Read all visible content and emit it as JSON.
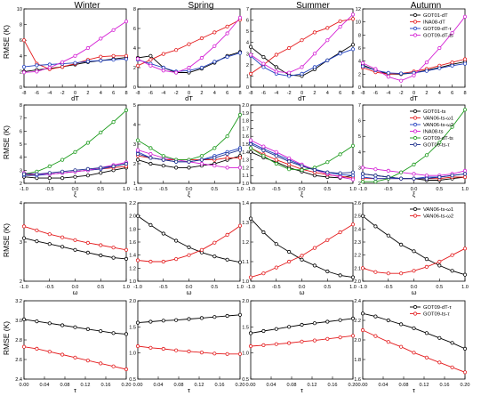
{
  "figure": {
    "seasons": [
      "Winter",
      "Spring",
      "Summer",
      "Autumn"
    ],
    "ylabel": "RMSE (K)"
  },
  "chart_data": [
    {
      "type": "line",
      "row": 0,
      "xlabel": "dT",
      "x": [
        -8,
        -6,
        -4,
        -2,
        0,
        2,
        4,
        6,
        8
      ],
      "xticks": [
        -8,
        -6,
        -4,
        -2,
        0,
        2,
        4,
        6,
        8
      ],
      "ylims": [
        [
          0,
          10
        ],
        [
          0,
          8
        ],
        [
          0,
          7
        ],
        [
          0,
          12
        ]
      ],
      "yticks": [
        [
          0,
          2,
          4,
          6,
          8,
          10
        ],
        [
          0,
          2,
          4,
          6,
          8
        ],
        [
          0,
          1,
          2,
          3,
          4,
          5,
          6,
          7
        ],
        [
          0,
          2,
          4,
          6,
          8,
          10,
          12
        ]
      ],
      "legend": {
        "panel": 3,
        "position": "top-right"
      },
      "series": [
        {
          "name": "GOT01-dT",
          "color": "#000000",
          "values": [
            [
              2.0,
              2.2,
              2.4,
              2.6,
              2.9,
              3.2,
              3.4,
              3.6,
              3.8
            ],
            [
              3.0,
              3.2,
              2.0,
              1.5,
              1.5,
              1.9,
              2.5,
              3.2,
              3.6
            ],
            [
              3.6,
              2.7,
              1.8,
              1.1,
              1.0,
              1.6,
              2.4,
              3.1,
              3.8
            ],
            [
              3.4,
              2.6,
              2.0,
              2.0,
              2.2,
              2.6,
              3.0,
              3.5,
              3.9
            ]
          ]
        },
        {
          "name": "INA08-dT",
          "color": "#e41a1c",
          "values": [
            [
              6.0,
              3.0,
              2.3,
              2.6,
              3.0,
              3.5,
              3.9,
              4.0,
              4.0
            ],
            [
              2.2,
              2.8,
              3.4,
              3.8,
              4.4,
              5.0,
              5.6,
              6.2,
              6.9
            ],
            [
              1.2,
              2.0,
              2.9,
              3.5,
              4.2,
              4.9,
              5.3,
              5.9,
              6.1
            ],
            [
              3.0,
              2.3,
              2.0,
              2.1,
              2.4,
              2.8,
              3.3,
              3.8,
              4.3
            ]
          ]
        },
        {
          "name": "GOT09-dT-τ",
          "color": "#1f3fbf",
          "values": [
            [
              2.6,
              2.8,
              2.9,
              3.0,
              3.1,
              3.3,
              3.4,
              3.5,
              3.6
            ],
            [
              2.8,
              2.4,
              2.0,
              1.6,
              1.7,
              2.0,
              2.6,
              3.1,
              3.5
            ],
            [
              2.8,
              1.8,
              1.2,
              1.0,
              1.2,
              1.8,
              2.4,
              3.0,
              3.4
            ],
            [
              3.2,
              2.6,
              2.2,
              2.1,
              2.2,
              2.5,
              2.9,
              3.3,
              3.6
            ]
          ]
        },
        {
          "name": "GOT09-dT-ts",
          "color": "#d41ed4",
          "values": [
            [
              1.9,
              2.0,
              2.5,
              3.2,
              4.0,
              5.0,
              6.2,
              7.3,
              8.4
            ],
            [
              2.9,
              2.2,
              1.7,
              1.5,
              2.0,
              3.0,
              4.2,
              5.5,
              7.1
            ],
            [
              2.9,
              2.1,
              1.4,
              1.3,
              1.8,
              3.0,
              4.2,
              5.4,
              6.5
            ],
            [
              3.7,
              2.8,
              1.6,
              1.0,
              1.8,
              3.8,
              6.0,
              8.3,
              10.8
            ]
          ]
        }
      ]
    },
    {
      "type": "line",
      "row": 1,
      "xlabel": "ξ",
      "x": [
        -1.0,
        -0.75,
        -0.5,
        -0.25,
        0.0,
        0.25,
        0.5,
        0.75,
        1.0
      ],
      "xticks": [
        -1.0,
        -0.5,
        0.0,
        0.5,
        1.0
      ],
      "ylims": [
        [
          2,
          8
        ],
        [
          1,
          5
        ],
        [
          1,
          2
        ],
        [
          2,
          7
        ]
      ],
      "yticks": [
        [
          2,
          3,
          4,
          5,
          6,
          7,
          8
        ],
        [
          1,
          2,
          3,
          4,
          5
        ],
        [
          1.0,
          1.1,
          1.2,
          1.3,
          1.4,
          1.5,
          1.6,
          1.7,
          1.8,
          1.9,
          2.0
        ],
        [
          2,
          3,
          4,
          5,
          6,
          7
        ]
      ],
      "legend": {
        "panel": 3,
        "position": "top-right"
      },
      "series": [
        {
          "name": "GOT01-ts",
          "color": "#000000",
          "values": [
            [
              2.5,
              2.4,
              2.4,
              2.4,
              2.5,
              2.6,
              2.8,
              3.0,
              3.2
            ],
            [
              2.2,
              2.0,
              1.9,
              1.8,
              1.8,
              1.9,
              2.0,
              2.2,
              2.4
            ],
            [
              1.4,
              1.33,
              1.27,
              1.2,
              1.15,
              1.1,
              1.08,
              1.07,
              1.1
            ],
            [
              2.6,
              2.5,
              2.4,
              2.3,
              2.3,
              2.2,
              2.2,
              2.3,
              2.4
            ]
          ]
        },
        {
          "name": "VAN06-ts-ω1",
          "color": "#e41a1c",
          "values": [
            [
              2.6,
              2.7,
              2.7,
              2.8,
              2.9,
              3.0,
              3.1,
              3.2,
              3.3
            ],
            [
              2.4,
              2.3,
              2.2,
              2.2,
              2.2,
              2.2,
              2.2,
              2.3,
              2.3
            ],
            [
              1.45,
              1.37,
              1.3,
              1.24,
              1.18,
              1.14,
              1.11,
              1.09,
              1.07
            ],
            [
              2.3,
              2.3,
              2.3,
              2.3,
              2.3,
              2.3,
              2.3,
              2.4,
              2.4
            ]
          ]
        },
        {
          "name": "VAN06-ts-ω2",
          "color": "#1f3fbf",
          "values": [
            [
              2.6,
              2.6,
              2.7,
              2.8,
              2.9,
              3.0,
              3.1,
              3.3,
              3.5
            ],
            [
              2.6,
              2.3,
              2.2,
              2.1,
              2.1,
              2.2,
              2.4,
              2.6,
              2.8
            ],
            [
              1.52,
              1.44,
              1.37,
              1.3,
              1.23,
              1.18,
              1.14,
              1.11,
              1.1
            ],
            [
              2.4,
              2.3,
              2.3,
              2.3,
              2.3,
              2.4,
              2.4,
              2.5,
              2.6
            ]
          ]
        },
        {
          "name": "INA08-ts",
          "color": "#d41ed4",
          "values": [
            [
              2.8,
              2.7,
              2.7,
              2.8,
              2.9,
              3.0,
              3.2,
              3.4,
              3.6
            ],
            [
              2.7,
              2.5,
              2.3,
              2.2,
              2.1,
              2.0,
              1.9,
              1.8,
              1.8
            ],
            [
              1.55,
              1.47,
              1.4,
              1.32,
              1.24,
              1.17,
              1.12,
              1.08,
              1.05
            ],
            [
              3.0,
              2.9,
              2.8,
              2.7,
              2.6,
              2.5,
              2.5,
              2.6,
              2.8
            ]
          ]
        },
        {
          "name": "GOT09-dT-ts",
          "color": "#1a9a1a",
          "values": [
            [
              2.7,
              2.9,
              3.3,
              3.8,
              4.4,
              5.1,
              5.9,
              6.7,
              7.6
            ],
            [
              3.2,
              2.8,
              2.4,
              2.2,
              2.2,
              2.4,
              2.8,
              3.4,
              4.5
            ],
            [
              1.45,
              1.35,
              1.25,
              1.18,
              1.17,
              1.2,
              1.27,
              1.37,
              1.48
            ],
            [
              2.1,
              2.1,
              2.3,
              2.7,
              3.2,
              3.8,
              4.6,
              5.6,
              6.7
            ]
          ]
        },
        {
          "name": "GOT09-ts-τ",
          "color": "#1b2e8c",
          "values": [
            [
              2.7,
              2.7,
              2.8,
              2.9,
              3.0,
              3.1,
              3.2,
              3.3,
              3.5
            ],
            [
              2.5,
              2.3,
              2.2,
              2.1,
              2.1,
              2.2,
              2.3,
              2.5,
              2.7
            ],
            [
              1.5,
              1.42,
              1.35,
              1.28,
              1.22,
              1.17,
              1.14,
              1.13,
              1.14
            ],
            [
              2.6,
              2.5,
              2.4,
              2.3,
              2.3,
              2.3,
              2.4,
              2.5,
              2.6
            ]
          ]
        }
      ]
    },
    {
      "type": "line",
      "row": 2,
      "xlabel": "ω",
      "x": [
        -1.0,
        -0.75,
        -0.5,
        -0.25,
        0.0,
        0.25,
        0.5,
        0.75,
        1.0
      ],
      "xticks": [
        -1.0,
        -0.5,
        0.0,
        0.5,
        1.0
      ],
      "ylims": [
        [
          2,
          4
        ],
        [
          1.0,
          2.2
        ],
        [
          1.0,
          1.4
        ],
        [
          2.0,
          2.6
        ]
      ],
      "yticks": [
        [
          2,
          3,
          4
        ],
        [
          1.0,
          1.2,
          1.4,
          1.6,
          1.8,
          2.0,
          2.2
        ],
        [
          1.0,
          1.1,
          1.2,
          1.3,
          1.4
        ],
        [
          2.0,
          2.1,
          2.2,
          2.3,
          2.4,
          2.5,
          2.6
        ]
      ],
      "legend": {
        "panel": 3,
        "position": "top-right"
      },
      "series": [
        {
          "name": "VAN06-ts-ω1",
          "color": "#000000",
          "values": [
            [
              3.1,
              3.02,
              2.95,
              2.88,
              2.8,
              2.73,
              2.66,
              2.6,
              2.57
            ],
            [
              2.0,
              1.86,
              1.73,
              1.62,
              1.52,
              1.44,
              1.38,
              1.33,
              1.29
            ],
            [
              1.32,
              1.25,
              1.19,
              1.15,
              1.11,
              1.08,
              1.05,
              1.03,
              1.02
            ],
            [
              2.5,
              2.42,
              2.35,
              2.28,
              2.23,
              2.17,
              2.12,
              2.08,
              2.05
            ]
          ]
        },
        {
          "name": "VAN06-ts-ω2",
          "color": "#e41a1c",
          "values": [
            [
              3.4,
              3.3,
              3.2,
              3.12,
              3.05,
              2.98,
              2.92,
              2.86,
              2.8
            ],
            [
              1.32,
              1.3,
              1.3,
              1.34,
              1.4,
              1.48,
              1.59,
              1.71,
              1.85
            ],
            [
              1.02,
              1.04,
              1.07,
              1.1,
              1.13,
              1.17,
              1.21,
              1.25,
              1.29
            ],
            [
              2.1,
              2.07,
              2.06,
              2.06,
              2.08,
              2.11,
              2.15,
              2.2,
              2.25
            ]
          ]
        }
      ]
    },
    {
      "type": "line",
      "row": 3,
      "xlabel": "τ",
      "x": [
        0.0,
        0.025,
        0.05,
        0.075,
        0.1,
        0.125,
        0.15,
        0.175,
        0.2
      ],
      "xticks": [
        0.0,
        0.04,
        0.08,
        0.12,
        0.16,
        0.2
      ],
      "ylims": [
        [
          2.4,
          3.2
        ],
        [
          0.5,
          2.0
        ],
        [
          0.5,
          2.0
        ],
        [
          1.6,
          2.4
        ]
      ],
      "yticks": [
        [
          2.4,
          2.6,
          2.8,
          3.0,
          3.2
        ],
        [
          0.5,
          1.0,
          1.5,
          2.0
        ],
        [
          0.5,
          1.0,
          1.5,
          2.0
        ],
        [
          1.6,
          1.8,
          2.0,
          2.2,
          2.4
        ]
      ],
      "legend": {
        "panel": 3,
        "position": "top-right"
      },
      "series": [
        {
          "name": "GOT09-dT-τ",
          "color": "#000000",
          "values": [
            [
              3.01,
              2.99,
              2.97,
              2.95,
              2.93,
              2.91,
              2.89,
              2.87,
              2.86
            ],
            [
              1.58,
              1.6,
              1.62,
              1.63,
              1.65,
              1.67,
              1.69,
              1.71,
              1.73
            ],
            [
              1.38,
              1.42,
              1.46,
              1.5,
              1.54,
              1.57,
              1.6,
              1.63,
              1.66
            ],
            [
              2.27,
              2.24,
              2.2,
              2.16,
              2.12,
              2.07,
              2.02,
              1.97,
              1.91
            ]
          ]
        },
        {
          "name": "GOT09-ts-τ",
          "color": "#e41a1c",
          "values": [
            [
              2.73,
              2.71,
              2.68,
              2.65,
              2.62,
              2.59,
              2.56,
              2.53,
              2.5
            ],
            [
              1.13,
              1.1,
              1.08,
              1.05,
              1.03,
              1.01,
              0.99,
              0.98,
              0.98
            ],
            [
              1.13,
              1.15,
              1.17,
              1.19,
              1.22,
              1.24,
              1.27,
              1.3,
              1.33
            ],
            [
              2.1,
              2.04,
              1.98,
              1.93,
              1.87,
              1.82,
              1.77,
              1.72,
              1.67
            ]
          ]
        }
      ]
    }
  ]
}
